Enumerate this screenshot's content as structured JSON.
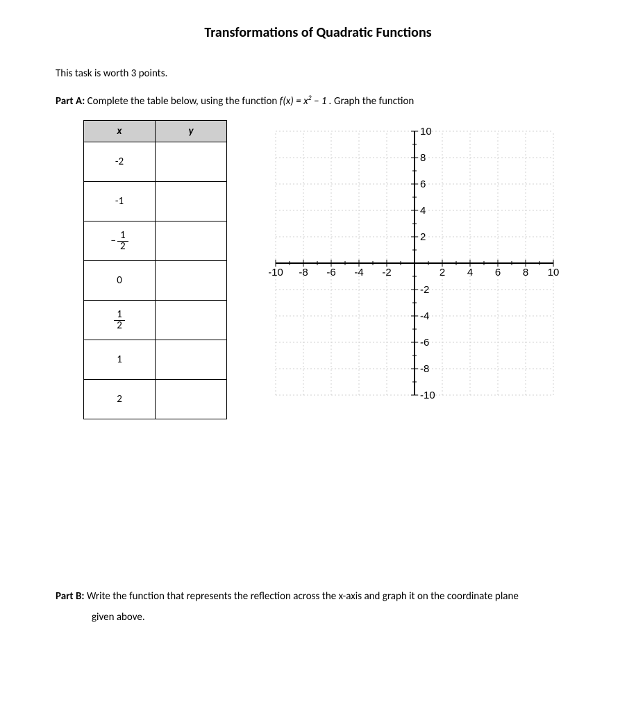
{
  "title": "Transformations of Quadratic Functions",
  "intro": "This task is worth 3 points.",
  "partA": {
    "label": "Part A:",
    "text_before_fn": "Complete the table below, using the function ",
    "fn_prefix": "f(x) = x",
    "fn_exp": "2",
    "fn_suffix": " − 1 .",
    "text_after_fn": "  Graph the function"
  },
  "table": {
    "headers": {
      "x": "x",
      "y": "y"
    },
    "rows": [
      {
        "x_type": "plain",
        "x": "-2",
        "y": ""
      },
      {
        "x_type": "plain",
        "x": "-1",
        "y": ""
      },
      {
        "x_type": "negfrac",
        "num": "1",
        "den": "2",
        "y": ""
      },
      {
        "x_type": "plain",
        "x": "0",
        "y": ""
      },
      {
        "x_type": "frac",
        "num": "1",
        "den": "2",
        "y": ""
      },
      {
        "x_type": "plain",
        "x": "1",
        "y": ""
      },
      {
        "x_type": "plain",
        "x": "2",
        "y": ""
      }
    ]
  },
  "graph": {
    "x_min": -10,
    "x_max": 10,
    "x_step": 2,
    "y_min": -10,
    "y_max": 10,
    "y_step": 2,
    "grid_color": "#d0d0d0",
    "grid_dash": "2,3",
    "axis_color": "#000000",
    "label_fontsize": 15,
    "x_labels": [
      "-10",
      "-8",
      "-6",
      "-4",
      "-2",
      "2",
      "4",
      "6",
      "8",
      "10"
    ],
    "y_labels_pos": [
      "10",
      "8",
      "6",
      "4",
      "2"
    ],
    "y_labels_neg": [
      "-2",
      "-4",
      "-6",
      "-8",
      "-10"
    ]
  },
  "partB": {
    "label": "Part B:",
    "text_line1": "Write the function that represents the reflection across the x-axis and graph it on the coordinate plane",
    "text_line2": "given above."
  }
}
